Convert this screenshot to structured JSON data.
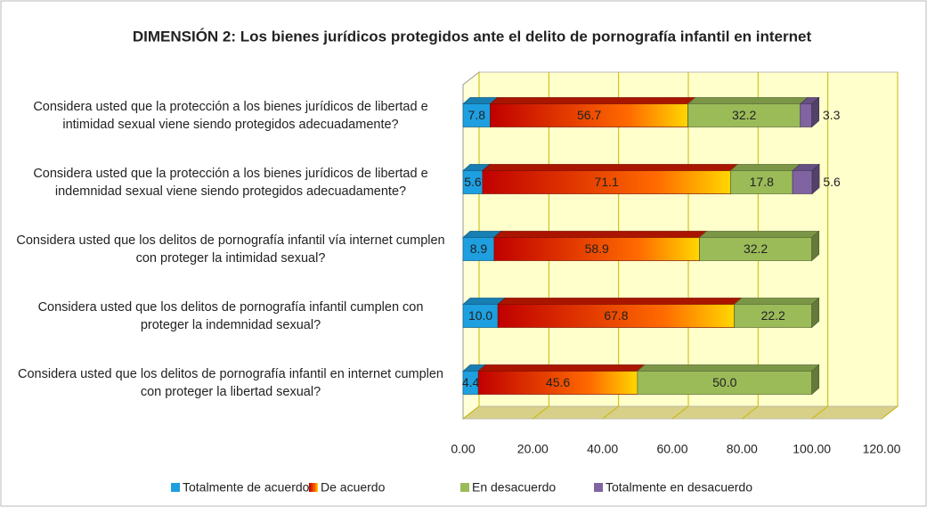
{
  "chart_data": {
    "type": "stacked_bar_horizontal",
    "title": "DIMENSIÓN 2: Los bienes jurídicos protegidos ante el delito de pornografía infantil en internet",
    "categories": [
      "Considera usted que la protección a los bienes jurídicos de libertad e intimidad sexual viene siendo protegidos adecuadamente?",
      "Considera usted que la protección a los bienes jurídicos de libertad e indemnidad sexual viene siendo protegidos adecuadamente?",
      "Considera usted que los delitos de pornografía infantil vía internet cumplen con proteger la intimidad sexual?",
      "Considera usted que los delitos de pornografía infantil cumplen con proteger la indemnidad sexual?",
      "Considera usted que los delitos de pornografía infantil en internet cumplen con proteger la libertad sexual?"
    ],
    "series": [
      {
        "name": "Totalmente de acuerdo",
        "color": "#1e9fe0",
        "values": [
          7.8,
          5.6,
          8.9,
          10.0,
          4.4
        ],
        "value_labels": [
          "7.8",
          "5.6",
          "8.9",
          "10.0",
          "4.4"
        ]
      },
      {
        "name": "De acuerdo",
        "color": "#d41a00",
        "values": [
          56.7,
          71.1,
          58.9,
          67.8,
          45.6
        ],
        "value_labels": [
          "56.7",
          "71.1",
          "58.9",
          "67.8",
          "45.6"
        ]
      },
      {
        "name": "En desacuerdo",
        "color": "#9bbb59",
        "values": [
          32.2,
          17.8,
          32.2,
          22.2,
          50.0
        ],
        "value_labels": [
          "32.2",
          "17.8",
          "32.2",
          "22.2",
          "50.0"
        ]
      },
      {
        "name": "Totalmente en desacuerdo",
        "color": "#8064a2",
        "values": [
          3.3,
          5.6,
          null,
          null,
          null
        ],
        "value_labels": [
          "3.3",
          "5.6",
          null,
          null,
          null
        ]
      }
    ],
    "xlim": [
      0,
      120
    ],
    "xticks": [
      {
        "value": 0,
        "label": "0.00"
      },
      {
        "value": 20,
        "label": "20.00"
      },
      {
        "value": 40,
        "label": "40.00"
      },
      {
        "value": 60,
        "label": "60.00"
      },
      {
        "value": 80,
        "label": "80.00"
      },
      {
        "value": 100,
        "label": "100.00"
      },
      {
        "value": 120,
        "label": "120.00"
      }
    ],
    "grid": true,
    "legend": "bottom"
  }
}
